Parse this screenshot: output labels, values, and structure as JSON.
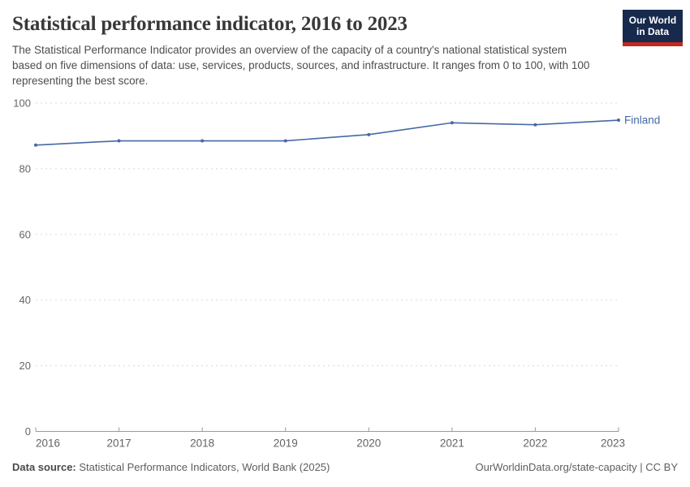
{
  "branding": {
    "logo_line1": "Our World",
    "logo_line2": "in Data",
    "logo_bg": "#172a4d",
    "logo_bar_color": "#c2281f"
  },
  "chart_data": {
    "type": "line",
    "title": "Statistical performance indicator, 2016 to 2023",
    "subtitle": "The Statistical Performance Indicator provides an overview of the capacity of a country's national statistical system based on five dimensions of data: use, services, products, sources, and infrastructure. It ranges from 0 to 100, with 100 representing the best score.",
    "xlabel": "",
    "ylabel": "",
    "x": [
      2016,
      2017,
      2018,
      2019,
      2020,
      2021,
      2022,
      2023
    ],
    "series": [
      {
        "name": "Finland",
        "color": "#4569a5",
        "values": [
          87.2,
          88.5,
          88.5,
          88.5,
          90.4,
          94.0,
          93.4,
          94.8
        ]
      }
    ],
    "ylim": [
      0,
      100
    ],
    "yticks": [
      0,
      20,
      40,
      60,
      80,
      100
    ],
    "grid": "horizontal-dashed",
    "legend": "end-of-line-label",
    "grid_color": "#dadada",
    "axis_color": "#9a9a9a",
    "tick_label_color": "#666666"
  },
  "footer": {
    "data_source_label": "Data source:",
    "data_source_value": " Statistical Performance Indicators, World Bank (2025)",
    "citation": "OurWorldinData.org/state-capacity | CC BY"
  }
}
